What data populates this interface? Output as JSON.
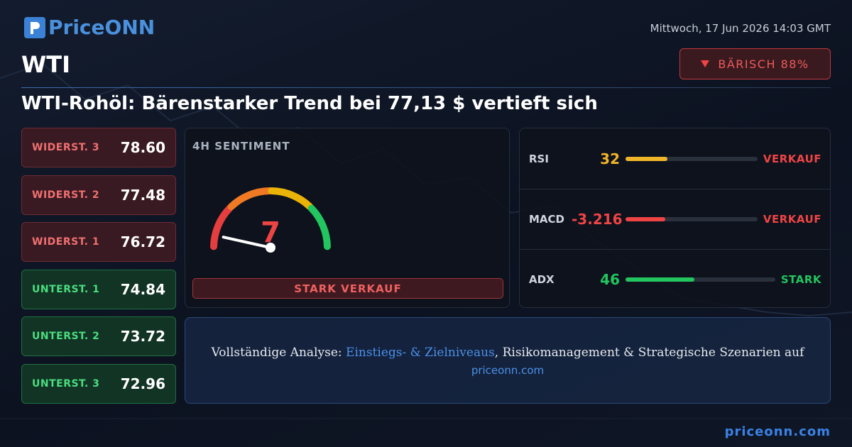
{
  "header": {
    "brand": "PriceONN",
    "datetime": "Mittwoch, 17 Jun 2026 14:03 GMT",
    "symbol": "WTI",
    "badge": "BÄRISCH 88%"
  },
  "headline": "WTI-Rohöl: Bärenstarker Trend bei 77,13 $ vertieft sich",
  "levels": [
    {
      "label": "WIDERST. 3",
      "value": "78.60",
      "kind": "resistance"
    },
    {
      "label": "WIDERST. 2",
      "value": "77.48",
      "kind": "resistance"
    },
    {
      "label": "WIDERST. 1",
      "value": "76.72",
      "kind": "resistance"
    },
    {
      "label": "UNTERST. 1",
      "value": "74.84",
      "kind": "support"
    },
    {
      "label": "UNTERST. 2",
      "value": "73.72",
      "kind": "support"
    },
    {
      "label": "UNTERST. 3",
      "value": "72.96",
      "kind": "support"
    }
  ],
  "sentiment": {
    "title": "4H SENTIMENT",
    "value": 7,
    "min": 0,
    "max": 100,
    "verdict": "STARK VERKAUF"
  },
  "indicators": [
    {
      "name": "RSI",
      "value": 32,
      "signal": "VERKAUF",
      "color": "#f0b429",
      "signal_color": "#ef4444"
    },
    {
      "name": "MACD",
      "value": -3.216,
      "signal": "VERKAUF",
      "color": "#ef4444",
      "signal_color": "#ef4444"
    },
    {
      "name": "ADX",
      "value": 46,
      "signal": "STARK",
      "color": "#22c55e",
      "signal_color": "#22c55e"
    }
  ],
  "promo": {
    "lead": "Vollständige Analyse: ",
    "highlight": "Einstiegs- & Zielniveaus",
    "rest": ", Risikomanagement & Strategische Szenarien auf",
    "link": "priceonn.com"
  },
  "footer": {
    "site": "priceonn.com"
  }
}
